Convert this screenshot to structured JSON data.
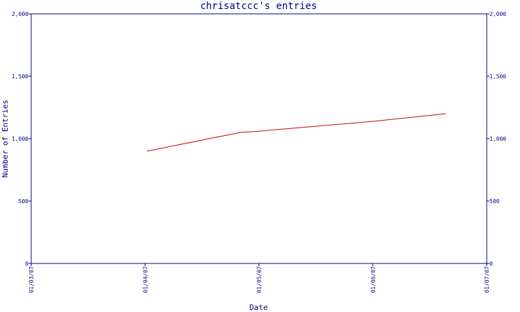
{
  "chart_data": {
    "type": "line",
    "title": "chrisatccc's entries",
    "xlabel": "Date",
    "ylabel": "Number of Entries",
    "x_tick_labels": [
      "01/03/07",
      "01/04/07",
      "01/05/07",
      "01/06/07",
      "01/07/07"
    ],
    "xlim": [
      "2007-03-01",
      "2007-07-01"
    ],
    "ylim": [
      0,
      2000
    ],
    "y_ticks": [
      0,
      500,
      1000,
      1500,
      2000
    ],
    "y_tick_labels": [
      "0",
      "500",
      "1,000",
      "1,500",
      "2,000"
    ],
    "grid": false,
    "series": [
      {
        "x": [
          "2007-04-01",
          "2007-04-26",
          "2007-05-01",
          "2007-06-01",
          "2007-06-20"
        ],
        "values": [
          900,
          1050,
          1060,
          1140,
          1200
        ],
        "color": "#cc0000"
      }
    ]
  }
}
